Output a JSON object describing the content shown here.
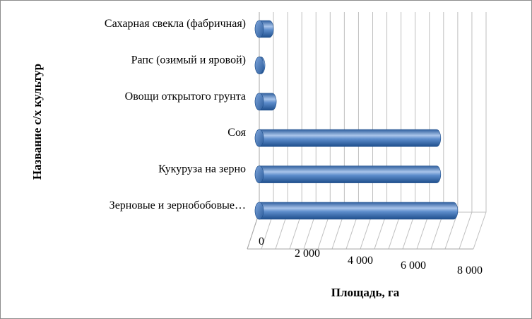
{
  "chart_data": {
    "type": "bar",
    "orientation": "horizontal",
    "style": "3d-cylinder",
    "categories": [
      "Зерновые и зернобобовые…",
      "Кукуруза на зерно",
      "Соя",
      "Овощи открытого грунта",
      "Рапс (озимый и яровой)",
      "Сахарная свекла (фабричная)"
    ],
    "values": [
      6900,
      6300,
      6300,
      500,
      100,
      400
    ],
    "xlabel": "Площадь, га",
    "ylabel": "Название с/х культур",
    "xlim": [
      0,
      8000
    ],
    "x_ticks": [
      0,
      2000,
      4000,
      6000,
      8000
    ],
    "x_tick_labels": [
      "0",
      "2 000",
      "4 000",
      "6 000",
      "8 000"
    ],
    "grid": true,
    "legend": "none",
    "colors": {
      "bar": "#4a7ebb",
      "bar_light": "#a9c4ea",
      "bar_dark": "#1f4f8c",
      "grid": "#bfbfbf"
    }
  }
}
